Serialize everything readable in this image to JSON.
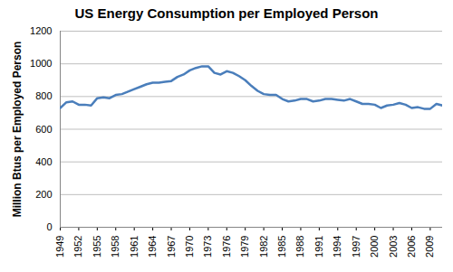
{
  "chart_data": {
    "type": "line",
    "title": "US Energy Consumption per Employed Person",
    "ylabel": "Million Btus per Employed Person",
    "x": [
      1949,
      1950,
      1951,
      1952,
      1953,
      1954,
      1955,
      1956,
      1957,
      1958,
      1959,
      1960,
      1961,
      1962,
      1963,
      1964,
      1965,
      1966,
      1967,
      1968,
      1969,
      1970,
      1971,
      1972,
      1973,
      1974,
      1975,
      1976,
      1977,
      1978,
      1979,
      1980,
      1981,
      1982,
      1983,
      1984,
      1985,
      1986,
      1987,
      1988,
      1989,
      1990,
      1991,
      1992,
      1993,
      1994,
      1995,
      1996,
      1997,
      1998,
      1999,
      2000,
      2001,
      2002,
      2003,
      2004,
      2005,
      2006,
      2007,
      2008,
      2009,
      2010,
      2011
    ],
    "values": [
      730,
      765,
      770,
      750,
      750,
      745,
      790,
      795,
      790,
      810,
      815,
      830,
      845,
      860,
      875,
      885,
      885,
      890,
      895,
      920,
      935,
      960,
      975,
      985,
      985,
      945,
      935,
      955,
      945,
      925,
      900,
      865,
      835,
      815,
      810,
      810,
      785,
      770,
      775,
      785,
      785,
      770,
      775,
      785,
      785,
      780,
      775,
      785,
      770,
      755,
      755,
      750,
      730,
      745,
      750,
      760,
      750,
      730,
      735,
      725,
      725,
      755,
      745
    ],
    "color": "#4a7ebb",
    "xlim": [
      1949,
      2011
    ],
    "xticks": [
      1949,
      1952,
      1955,
      1958,
      1961,
      1964,
      1967,
      1970,
      1973,
      1976,
      1979,
      1982,
      1985,
      1988,
      1991,
      1994,
      1997,
      2000,
      2003,
      2006,
      2009
    ],
    "ylim": [
      0,
      1200
    ],
    "yticks": [
      0,
      200,
      400,
      600,
      800,
      1000,
      1200
    ],
    "grid": true
  }
}
